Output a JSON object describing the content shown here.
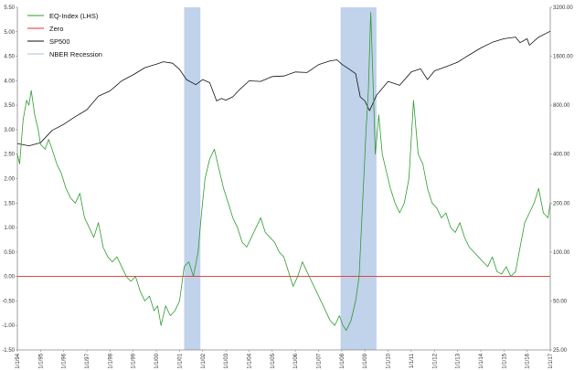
{
  "chart_data": {
    "type": "line",
    "title": "",
    "xlabel": "",
    "ylabel": "",
    "grid": false,
    "legend": {
      "position": "top-left",
      "entries": [
        "EQ-Index (LHS)",
        "Zero",
        "SP500",
        "NBER Recession"
      ]
    },
    "x_tick_labels": [
      "1/1/94",
      "1/1/95",
      "1/1/96",
      "1/1/97",
      "1/1/98",
      "1/1/99",
      "1/1/00",
      "1/1/01",
      "1/1/02",
      "1/1/03",
      "1/1/04",
      "1/1/05",
      "1/1/06",
      "1/1/07",
      "1/1/08",
      "1/1/09",
      "1/1/10",
      "1/1/11",
      "1/1/12",
      "1/1/13",
      "1/1/14",
      "1/1/15",
      "1/1/16",
      "1/1/17"
    ],
    "x_range": [
      1994.0,
      2017.0
    ],
    "y_left": {
      "range": [
        -1.5,
        5.5
      ],
      "ticks": [
        "-1.50",
        "-1.00",
        "-0.50",
        "0.00",
        "0.50",
        "1.00",
        "1.50",
        "2.00",
        "2.50",
        "3.00",
        "3.50",
        "4.00",
        "4.50",
        "5.00",
        "5.50"
      ]
    },
    "y_right": {
      "scale": "log",
      "range": [
        25,
        3200
      ],
      "ticks": [
        {
          "label": "25.00",
          "value": 25
        },
        {
          "label": "50.00",
          "value": 50
        },
        {
          "label": "100.00",
          "value": 100
        },
        {
          "label": "200.00",
          "value": 200
        },
        {
          "label": "400.00",
          "value": 400
        },
        {
          "label": "800.00",
          "value": 800
        },
        {
          "label": "1600.00",
          "value": 1600
        },
        {
          "label": "3200.00",
          "value": 3200
        }
      ]
    },
    "recessions": [
      {
        "start": 2001.2,
        "end": 2001.9
      },
      {
        "start": 2007.95,
        "end": 2009.5
      }
    ],
    "series": [
      {
        "name": "EQ-Index (LHS)",
        "axis": "left",
        "color": "#2e9b2e",
        "x": [
          1994.0,
          1994.1,
          1994.25,
          1994.4,
          1994.5,
          1994.6,
          1994.75,
          1994.9,
          1995.0,
          1995.2,
          1995.35,
          1995.5,
          1995.7,
          1995.9,
          1996.1,
          1996.3,
          1996.5,
          1996.7,
          1996.9,
          1997.1,
          1997.3,
          1997.5,
          1997.7,
          1997.9,
          1998.1,
          1998.3,
          1998.5,
          1998.7,
          1998.9,
          1999.1,
          1999.3,
          1999.5,
          1999.7,
          1999.9,
          2000.05,
          2000.2,
          2000.4,
          2000.6,
          2000.8,
          2001.0,
          2001.2,
          2001.4,
          2001.6,
          2001.8,
          2001.95,
          2002.1,
          2002.3,
          2002.5,
          2002.7,
          2002.9,
          2003.1,
          2003.3,
          2003.5,
          2003.7,
          2003.9,
          2004.1,
          2004.3,
          2004.5,
          2004.7,
          2004.9,
          2005.1,
          2005.3,
          2005.5,
          2005.7,
          2005.9,
          2006.1,
          2006.3,
          2006.5,
          2006.7,
          2006.9,
          2007.1,
          2007.3,
          2007.5,
          2007.7,
          2007.9,
          2008.05,
          2008.2,
          2008.4,
          2008.6,
          2008.75,
          2008.85,
          2008.95,
          2009.05,
          2009.15,
          2009.25,
          2009.35,
          2009.45,
          2009.6,
          2009.75,
          2009.9,
          2010.1,
          2010.3,
          2010.5,
          2010.7,
          2010.9,
          2011.1,
          2011.3,
          2011.5,
          2011.7,
          2011.9,
          2012.1,
          2012.3,
          2012.5,
          2012.7,
          2012.9,
          2013.1,
          2013.3,
          2013.5,
          2013.7,
          2013.9,
          2014.1,
          2014.3,
          2014.5,
          2014.7,
          2014.9,
          2015.1,
          2015.3,
          2015.5,
          2015.7,
          2015.9,
          2016.1,
          2016.3,
          2016.5,
          2016.7,
          2016.9,
          2017.0
        ],
        "y": [
          2.5,
          2.3,
          3.2,
          3.6,
          3.5,
          3.8,
          3.3,
          3.0,
          2.7,
          2.6,
          2.8,
          2.6,
          2.3,
          2.1,
          1.8,
          1.6,
          1.5,
          1.7,
          1.2,
          1.0,
          0.8,
          1.1,
          0.6,
          0.4,
          0.3,
          0.4,
          0.2,
          0.0,
          -0.1,
          0.0,
          -0.3,
          -0.5,
          -0.4,
          -0.7,
          -0.6,
          -1.0,
          -0.6,
          -0.8,
          -0.7,
          -0.5,
          0.2,
          0.3,
          0.0,
          0.5,
          1.3,
          2.0,
          2.4,
          2.6,
          2.2,
          1.8,
          1.5,
          1.2,
          1.0,
          0.7,
          0.6,
          0.8,
          1.0,
          1.2,
          0.9,
          0.8,
          0.7,
          0.5,
          0.4,
          0.1,
          -0.2,
          0.0,
          0.3,
          0.1,
          -0.1,
          -0.3,
          -0.5,
          -0.7,
          -0.9,
          -1.0,
          -0.8,
          -1.0,
          -1.1,
          -0.9,
          -0.5,
          0.0,
          1.0,
          2.0,
          3.0,
          3.8,
          5.4,
          4.0,
          2.5,
          3.3,
          2.5,
          2.2,
          1.8,
          1.5,
          1.3,
          1.5,
          2.0,
          3.6,
          2.5,
          2.3,
          1.8,
          1.5,
          1.4,
          1.2,
          1.3,
          1.0,
          0.9,
          1.1,
          0.8,
          0.6,
          0.5,
          0.4,
          0.3,
          0.2,
          0.4,
          0.1,
          0.05,
          0.2,
          0.0,
          0.1,
          0.6,
          1.1,
          1.3,
          1.5,
          1.8,
          1.3,
          1.2,
          1.5
        ]
      },
      {
        "name": "Zero",
        "axis": "left",
        "color": "#e03030",
        "x": [
          1994.0,
          2017.0
        ],
        "y": [
          0,
          0
        ]
      },
      {
        "name": "SP500",
        "axis": "right",
        "color": "#111111",
        "x": [
          1994.0,
          1994.5,
          1995.0,
          1995.5,
          1996.0,
          1996.5,
          1997.0,
          1997.5,
          1998.0,
          1998.5,
          1999.0,
          1999.5,
          2000.0,
          2000.3,
          2000.7,
          2001.0,
          2001.3,
          2001.7,
          2002.0,
          2002.3,
          2002.6,
          2002.8,
          2003.0,
          2003.3,
          2003.6,
          2004.0,
          2004.5,
          2005.0,
          2005.5,
          2006.0,
          2006.5,
          2007.0,
          2007.5,
          2007.8,
          2008.0,
          2008.3,
          2008.6,
          2008.8,
          2009.0,
          2009.2,
          2009.5,
          2010.0,
          2010.5,
          2011.0,
          2011.4,
          2011.7,
          2012.0,
          2012.5,
          2013.0,
          2013.5,
          2014.0,
          2014.5,
          2015.0,
          2015.5,
          2015.7,
          2016.0,
          2016.1,
          2016.5,
          2017.0
        ],
        "y": [
          465,
          450,
          470,
          560,
          610,
          680,
          750,
          910,
          980,
          1130,
          1230,
          1360,
          1430,
          1480,
          1450,
          1330,
          1150,
          1070,
          1150,
          1100,
          850,
          880,
          860,
          900,
          1000,
          1130,
          1120,
          1200,
          1210,
          1280,
          1270,
          1420,
          1500,
          1520,
          1430,
          1340,
          1250,
          900,
          850,
          740,
          920,
          1120,
          1060,
          1280,
          1340,
          1150,
          1300,
          1380,
          1470,
          1630,
          1800,
          1950,
          2050,
          2100,
          1940,
          2050,
          1870,
          2100,
          2280
        ]
      }
    ]
  }
}
